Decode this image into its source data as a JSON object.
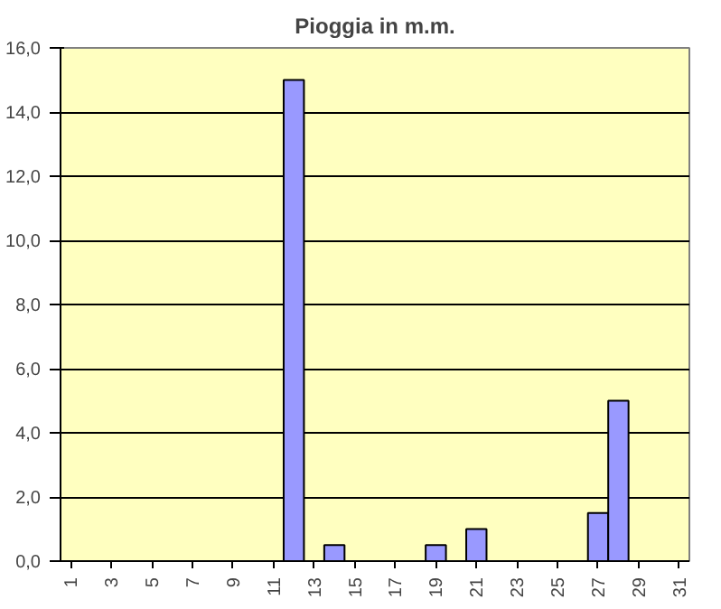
{
  "chart_data": {
    "type": "bar",
    "title": "Pioggia in m.m.",
    "categories": [
      "1",
      null,
      "3",
      null,
      "5",
      null,
      "7",
      null,
      "9",
      null,
      "11",
      null,
      "13",
      null,
      "15",
      null,
      "17",
      null,
      "19",
      null,
      "21",
      null,
      "23",
      null,
      "25",
      null,
      "27",
      null,
      "29",
      null,
      "31"
    ],
    "values": [
      0,
      0,
      0,
      0,
      0,
      0,
      0,
      0,
      0,
      0,
      0,
      15,
      0,
      0.5,
      0,
      0,
      0,
      0,
      0.5,
      0,
      1.0,
      0,
      0,
      0,
      0,
      0,
      1.5,
      5.0,
      0,
      0,
      0
    ],
    "color": "#9999ff",
    "ylim": [
      0,
      16
    ],
    "yticks": [
      {
        "value": 0,
        "label": "0,0"
      },
      {
        "value": 2,
        "label": "2,0"
      },
      {
        "value": 4,
        "label": "4,0"
      },
      {
        "value": 6,
        "label": "6,0"
      },
      {
        "value": 8,
        "label": "8,0"
      },
      {
        "value": 10,
        "label": "10,0"
      },
      {
        "value": 12,
        "label": "12,0"
      },
      {
        "value": 14,
        "label": "14,0"
      },
      {
        "value": 16,
        "label": "16,0"
      }
    ],
    "grid": "y"
  }
}
